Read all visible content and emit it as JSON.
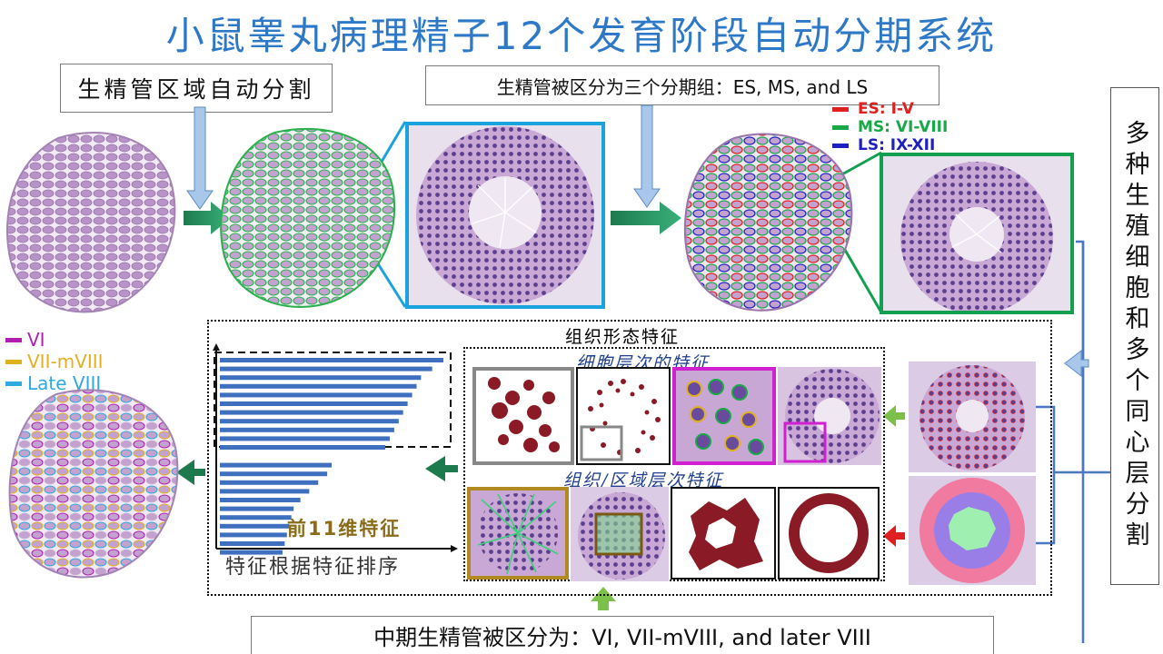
{
  "title": "小鼠睾丸病理精子12个发育阶段自动分期系统",
  "step1_label": "生精管区域自动分割",
  "step2_label": "生精管被区分为三个分期组：ES, MS, and LS",
  "legend_top": [
    {
      "text": "ES: I-V",
      "color": "#e02020"
    },
    {
      "text": "MS: VI-VIII",
      "color": "#18a848"
    },
    {
      "text": "LS: IX-XII",
      "color": "#2020c0"
    }
  ],
  "legend_left": [
    {
      "text": "VI",
      "color": "#b020b0"
    },
    {
      "text": "VII-mVIII",
      "color": "#e0b020"
    },
    {
      "text": "Late VIII",
      "color": "#30a8e0"
    }
  ],
  "side_label": "多种生殖细胞和多个同心层分割",
  "tissue_label": "组织形态特征",
  "cell_level_label": "细胞层次的特征",
  "region_level_label": "组织/区域层次特征",
  "top11_label": "前11维特征",
  "sort_label": "特征根据特征排序",
  "bottom_label": "中期生精管被区分为：VI, VII-mVIII, and later VIII",
  "chart_data": {
    "type": "bar",
    "orientation": "horizontal",
    "values": [
      100,
      95,
      90,
      88,
      86,
      84,
      82,
      80,
      78,
      76,
      74,
      50,
      48,
      44,
      40,
      36,
      33,
      32,
      31,
      30,
      29,
      28
    ]
  }
}
